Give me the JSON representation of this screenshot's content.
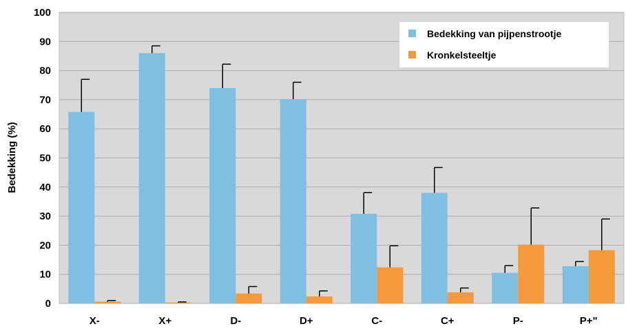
{
  "chart_data": {
    "type": "bar",
    "title": "",
    "xlabel": "",
    "ylabel": "Bedekking (%)",
    "ylim": [
      0,
      100
    ],
    "yticks": [
      0,
      10,
      20,
      30,
      40,
      50,
      60,
      70,
      80,
      90,
      100
    ],
    "grid": true,
    "legend_position": "top-right",
    "categories": [
      "X-",
      "X+",
      "D-",
      "D+",
      "C-",
      "C+",
      "P-",
      "P+\""
    ],
    "series": [
      {
        "name": "Bedekking van pijpenstrootje",
        "color": "#7fc0e2",
        "values": [
          65.8,
          86,
          74,
          70.2,
          30.8,
          38,
          10.5,
          12.8
        ],
        "errors": [
          11.2,
          2.5,
          8.2,
          5.8,
          7.3,
          8.7,
          2.5,
          1.6
        ]
      },
      {
        "name": "Kronkelsteeltje",
        "color": "#f49a3c",
        "values": [
          0.6,
          0.3,
          3.4,
          2.4,
          12.4,
          3.8,
          20.2,
          18.3
        ],
        "errors": [
          0.4,
          0.2,
          2.4,
          1.9,
          7.4,
          1.5,
          12.6,
          10.7
        ]
      }
    ]
  }
}
